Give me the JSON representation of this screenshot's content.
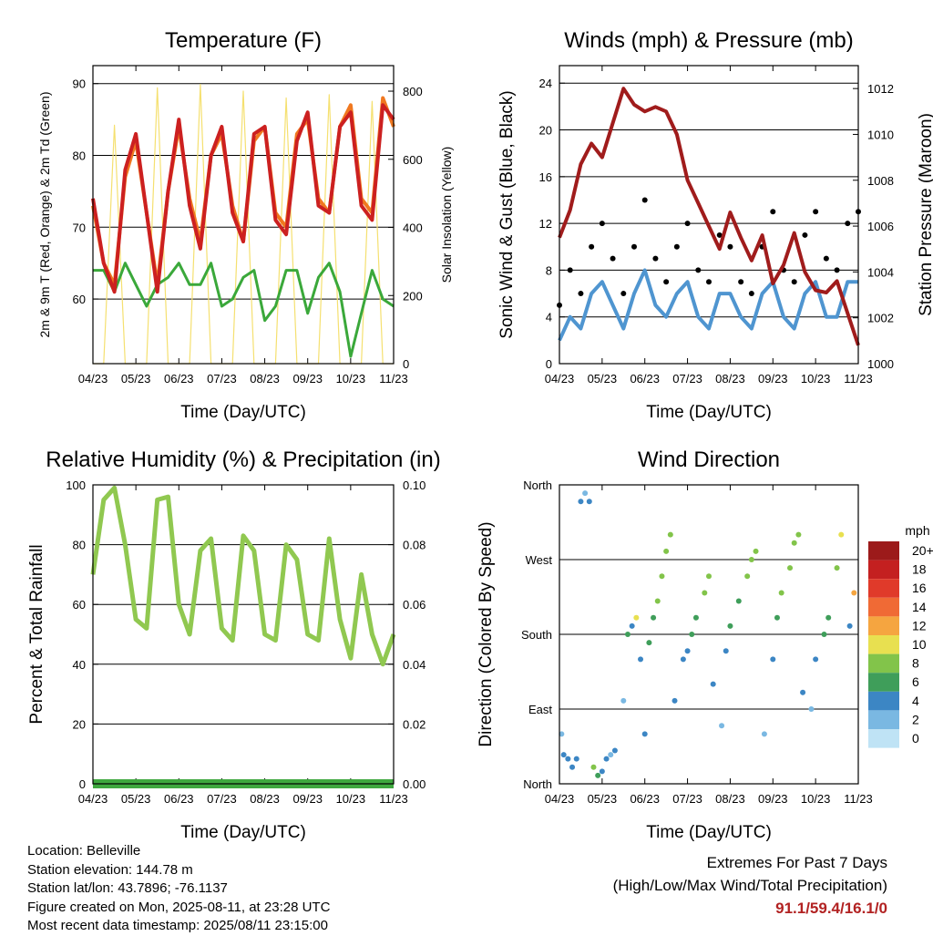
{
  "x_ticks": [
    "04/23",
    "05/23",
    "06/23",
    "07/23",
    "08/23",
    "09/23",
    "10/23",
    "11/23"
  ],
  "chart_data": [
    {
      "type": "line",
      "title": "Temperature (F)",
      "xlabel": "Time (Day/UTC)",
      "ylabel": "2m & 9m T (Red, Orange) & 2m Td (Green)",
      "y2label": "Solar Insolation (Yellow)",
      "ylim": [
        51,
        92.5
      ],
      "yticks": [
        60,
        70,
        80,
        90
      ],
      "y2lim": [
        0,
        875
      ],
      "y2ticks": [
        0,
        200,
        400,
        600,
        800
      ],
      "grid": true,
      "x": [
        0,
        0.25,
        0.5,
        0.75,
        1,
        1.25,
        1.5,
        1.75,
        2,
        2.25,
        2.5,
        2.75,
        3,
        3.25,
        3.5,
        3.75,
        4,
        4.25,
        4.5,
        4.75,
        5,
        5.25,
        5.5,
        5.75,
        6,
        6.25,
        6.5,
        6.75,
        7
      ],
      "series": [
        {
          "color": "#cc2020",
          "axis": "y",
          "values": [
            74,
            65,
            61,
            78,
            83,
            72,
            61,
            75,
            85,
            73,
            67,
            80,
            84,
            72,
            68,
            83,
            84,
            71,
            69,
            82,
            86,
            73,
            72,
            84,
            86,
            73,
            71,
            87,
            85
          ]
        },
        {
          "color": "#f07820",
          "axis": "y",
          "values": [
            73,
            65,
            62,
            77,
            82,
            72,
            62,
            75,
            84,
            74,
            68,
            80,
            83,
            73,
            68,
            82,
            84,
            72,
            70,
            83,
            85,
            74,
            72,
            84,
            87,
            74,
            72,
            88,
            84
          ]
        },
        {
          "color": "#3aa83a",
          "axis": "y",
          "values": [
            64,
            64,
            61,
            65,
            62,
            59,
            62,
            63,
            65,
            62,
            62,
            65,
            59,
            60,
            63,
            64,
            57,
            59,
            64,
            64,
            58,
            63,
            65,
            61,
            52,
            58,
            64,
            60,
            59
          ]
        },
        {
          "color": "#f5e070",
          "axis": "y2",
          "values": [
            0,
            0,
            700,
            0,
            0,
            0,
            810,
            0,
            0,
            0,
            820,
            0,
            0,
            0,
            800,
            0,
            0,
            0,
            780,
            0,
            0,
            0,
            790,
            0,
            0,
            0,
            770,
            0,
            0
          ]
        }
      ]
    },
    {
      "type": "scatter",
      "title": "Winds (mph) & Pressure (mb)",
      "xlabel": "Time (Day/UTC)",
      "ylabel": "Sonic Wind & Gust (Blue, Black)",
      "y2label": "Station Pressure (Maroon)",
      "ylim": [
        0,
        25.5
      ],
      "yticks": [
        0,
        4,
        8,
        12,
        16,
        20,
        24
      ],
      "y2lim": [
        1000,
        1013
      ],
      "y2ticks": [
        1000,
        1002,
        1004,
        1006,
        1008,
        1010,
        1012
      ],
      "grid": true,
      "x": [
        0,
        0.25,
        0.5,
        0.75,
        1,
        1.25,
        1.5,
        1.75,
        2,
        2.25,
        2.5,
        2.75,
        3,
        3.25,
        3.5,
        3.75,
        4,
        4.25,
        4.5,
        4.75,
        5,
        5.25,
        5.5,
        5.75,
        6,
        6.25,
        6.5,
        6.75,
        7
      ],
      "series": [
        {
          "name_hidden": "gust",
          "color": "#000000",
          "axis": "y",
          "values": [
            5,
            8,
            6,
            10,
            12,
            9,
            6,
            10,
            14,
            9,
            7,
            10,
            12,
            8,
            7,
            11,
            10,
            7,
            6,
            10,
            13,
            8,
            7,
            11,
            13,
            9,
            8,
            12,
            13
          ]
        },
        {
          "name_hidden": "wind",
          "color": "#4f95d0",
          "axis": "y",
          "values": [
            2,
            4,
            3,
            6,
            7,
            5,
            3,
            6,
            8,
            5,
            4,
            6,
            7,
            4,
            3,
            6,
            6,
            4,
            3,
            6,
            7,
            4,
            3,
            6,
            7,
            4,
            4,
            7,
            7
          ]
        },
        {
          "name_hidden": "pressure",
          "color": "#a01c1c",
          "axis": "y2",
          "values": [
            1005.5,
            1006.7,
            1008.7,
            1009.6,
            1009,
            1010.5,
            1012,
            1011.3,
            1011,
            1011.2,
            1011,
            1010,
            1008,
            1007,
            1006,
            1005,
            1006.6,
            1005.5,
            1004.5,
            1005.6,
            1003.5,
            1004.3,
            1005.7,
            1004,
            1003.2,
            1003.1,
            1003.6,
            1002.2,
            1000.8
          ]
        }
      ]
    },
    {
      "type": "line",
      "title": "Relative Humidity (%) & Precipitation (in)",
      "xlabel": "Time (Day/UTC)",
      "ylabel": "Percent & Total Rainfall",
      "ylim": [
        0,
        100
      ],
      "yticks": [
        0,
        20,
        40,
        60,
        80,
        100
      ],
      "y2lim": [
        0,
        0.1
      ],
      "y2ticks": [
        "0.00",
        "0.02",
        "0.04",
        "0.06",
        "0.08",
        "0.10"
      ],
      "grid": true,
      "x": [
        0,
        0.25,
        0.5,
        0.75,
        1,
        1.25,
        1.5,
        1.75,
        2,
        2.25,
        2.5,
        2.75,
        3,
        3.25,
        3.5,
        3.75,
        4,
        4.25,
        4.5,
        4.75,
        5,
        5.25,
        5.5,
        5.75,
        6,
        6.25,
        6.5,
        6.75,
        7
      ],
      "series": [
        {
          "color": "#90c850",
          "axis": "y",
          "values": [
            70,
            95,
            99,
            80,
            55,
            52,
            95,
            96,
            60,
            50,
            78,
            82,
            52,
            48,
            83,
            78,
            50,
            48,
            80,
            75,
            50,
            48,
            82,
            55,
            42,
            70,
            50,
            40,
            50
          ]
        },
        {
          "color": "#3fa83f",
          "axis": "y2",
          "values": [
            0,
            0,
            0,
            0,
            0,
            0,
            0,
            0,
            0,
            0,
            0,
            0,
            0,
            0,
            0,
            0,
            0,
            0,
            0,
            0,
            0,
            0,
            0,
            0,
            0,
            0,
            0,
            0,
            0
          ]
        }
      ]
    },
    {
      "type": "scatter",
      "title": "Wind Direction",
      "xlabel": "Time (Day/UTC)",
      "ylabel": "Direction (Colored By Speed)",
      "yticks": [
        "North",
        "East",
        "South",
        "West",
        "North"
      ],
      "ylim": [
        0,
        360
      ],
      "colorbar_title": "mph",
      "colorbar_labels": [
        "20+",
        "18",
        "16",
        "14",
        "12",
        "10",
        "8",
        "6",
        "4",
        "2",
        "0"
      ],
      "colorbar_colors": [
        "#9c1a1a",
        "#c42020",
        "#e03a2a",
        "#f06a35",
        "#f5a540",
        "#e8e050",
        "#82c44a",
        "#3f9e5a",
        "#3c86c4",
        "#7ab8e2",
        "#bfe3f5"
      ],
      "x": [
        0.05,
        0.1,
        0.2,
        0.3,
        0.4,
        0.5,
        0.6,
        0.7,
        0.8,
        0.9,
        1.0,
        1.1,
        1.2,
        1.3,
        1.5,
        1.6,
        1.7,
        1.8,
        1.9,
        2.0,
        2.1,
        2.2,
        2.3,
        2.4,
        2.5,
        2.6,
        2.7,
        2.9,
        3.0,
        3.1,
        3.2,
        3.4,
        3.5,
        3.6,
        3.8,
        3.9,
        4.0,
        4.2,
        4.4,
        4.5,
        4.6,
        4.8,
        5.0,
        5.1,
        5.2,
        5.4,
        5.5,
        5.6,
        5.7,
        5.9,
        6.0,
        6.2,
        6.3,
        6.5,
        6.6,
        6.8,
        6.9
      ],
      "y": [
        60,
        35,
        30,
        20,
        30,
        340,
        350,
        340,
        20,
        10,
        15,
        30,
        35,
        40,
        100,
        180,
        190,
        200,
        150,
        60,
        170,
        200,
        220,
        250,
        280,
        300,
        100,
        150,
        160,
        180,
        200,
        230,
        250,
        120,
        70,
        160,
        190,
        220,
        250,
        270,
        280,
        60,
        150,
        200,
        230,
        260,
        290,
        300,
        110,
        90,
        150,
        180,
        200,
        260,
        300,
        190,
        230
      ],
      "speeds": [
        2,
        3,
        4,
        4,
        3,
        3,
        2,
        3,
        8,
        6,
        4,
        3,
        2,
        3,
        2,
        5,
        4,
        9,
        3,
        3,
        5,
        6,
        7,
        8,
        8,
        7,
        3,
        4,
        4,
        5,
        6,
        7,
        8,
        3,
        2,
        4,
        5,
        6,
        7,
        8,
        8,
        2,
        4,
        6,
        7,
        8,
        8,
        7,
        3,
        2,
        4,
        5,
        6,
        8,
        10,
        4,
        11
      ]
    }
  ],
  "info": {
    "location": "Location: Belleville",
    "elevation": "Station elevation: 144.78 m",
    "latlon": "Station lat/lon: 43.7896; -76.1137",
    "created": "Figure created on Mon, 2025-08-11, at 23:28 UTC",
    "recent": "Most recent data timestamp: 2025/08/11 23:15:00"
  },
  "extremes": {
    "line1": "Extremes For Past 7 Days",
    "line2": "(High/Low/Max Wind/Total Precipitation)",
    "values": "91.1/59.4/16.1/0"
  }
}
